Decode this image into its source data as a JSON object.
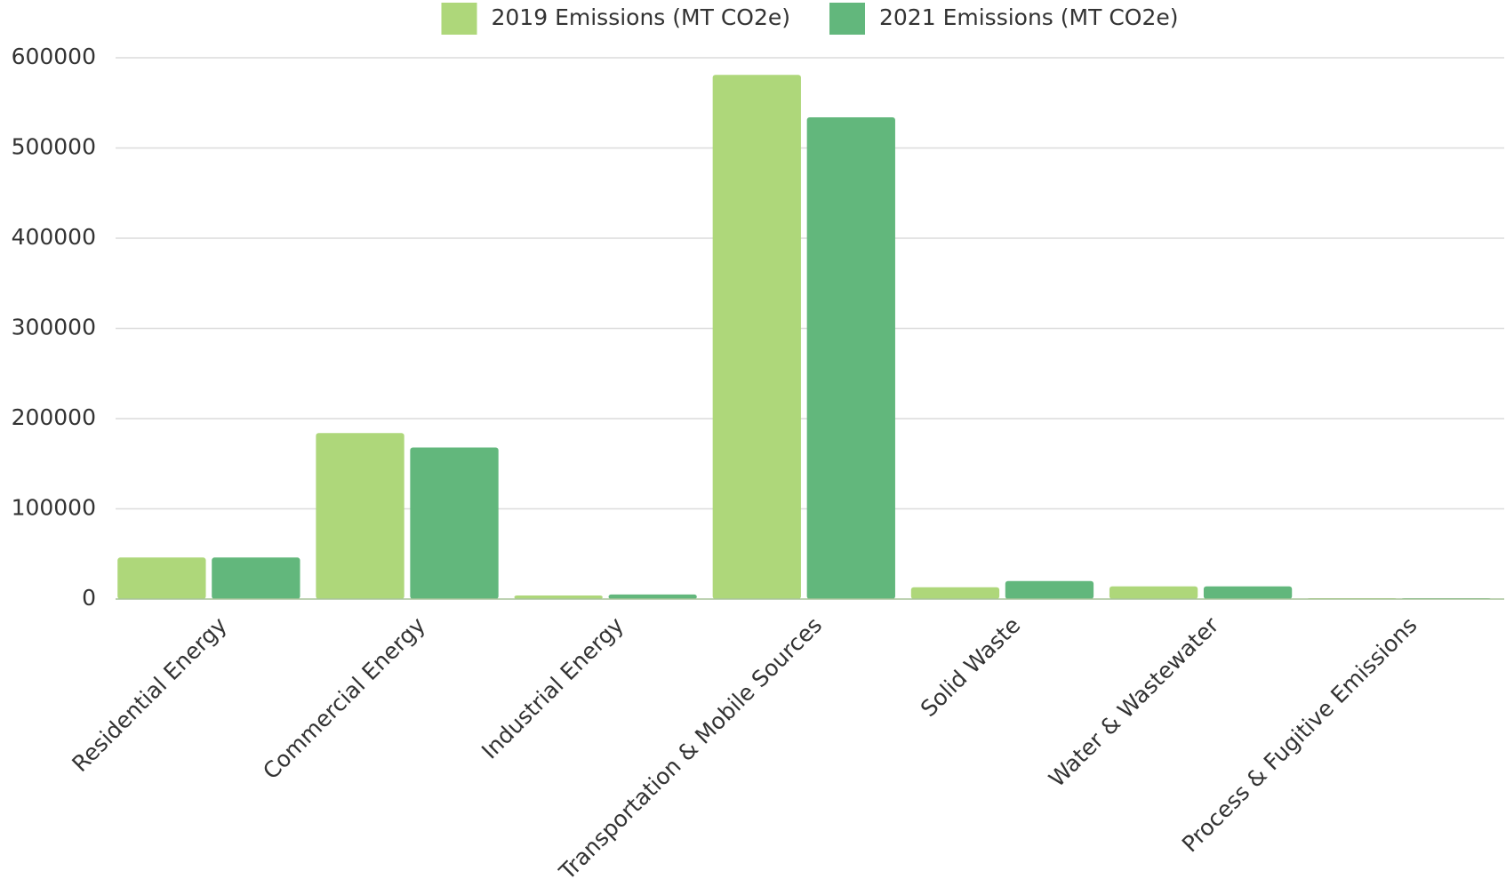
{
  "chart_data": {
    "type": "bar",
    "categories": [
      "Residential Energy",
      "Commercial Energy",
      "Industrial Energy",
      "Transportation & Mobile Sources",
      "Solid Waste",
      "Water & Wastewater",
      "Process & Fugitive Emissions"
    ],
    "series": [
      {
        "name": "2019 Emissions (MT CO2e)",
        "color": "#aed77a",
        "values": [
          46000,
          184000,
          4000,
          581000,
          13000,
          14000,
          1000
        ]
      },
      {
        "name": "2021 Emissions (MT CO2e)",
        "color": "#62b77c",
        "values": [
          46000,
          168000,
          5000,
          534000,
          20000,
          14000,
          1000
        ]
      }
    ],
    "ylim": [
      0,
      600000
    ],
    "yticks": [
      0,
      100000,
      200000,
      300000,
      400000,
      500000,
      600000
    ],
    "grid": true,
    "legend": "top"
  }
}
